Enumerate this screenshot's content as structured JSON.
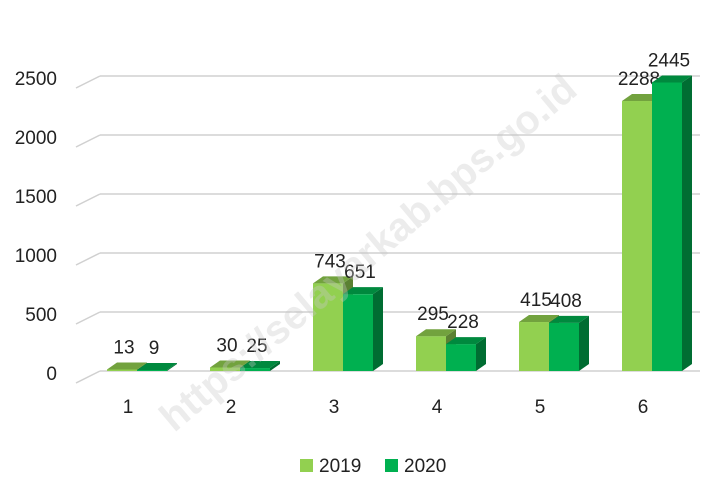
{
  "chart_data": {
    "type": "bar3d",
    "categories": [
      "1",
      "2",
      "3",
      "4",
      "5",
      "6"
    ],
    "series": [
      {
        "name": "2019",
        "color": "#92d050",
        "values": [
          13,
          30,
          743,
          295,
          415,
          2288
        ]
      },
      {
        "name": "2020",
        "color": "#00b050",
        "values": [
          9,
          25,
          651,
          228,
          408,
          2445
        ]
      }
    ],
    "ylim": [
      0,
      2500
    ],
    "yticks": [
      0,
      500,
      1000,
      1500,
      2000,
      2500
    ],
    "grid": true,
    "legend": "bottom",
    "watermark": "https://selayarkab.bps.go.id"
  }
}
